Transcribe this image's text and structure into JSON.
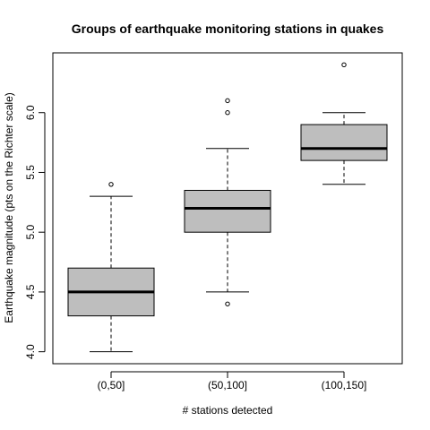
{
  "chart_data": {
    "type": "boxplot",
    "title": "Groups of earthquake monitoring stations in quakes",
    "xlabel": "# stations detected",
    "ylabel": "Earthquake magnitude (pts on the Richter scale)",
    "categories": [
      "(0,50]",
      "(50,100]",
      "(100,150]"
    ],
    "ylim": [
      3.9,
      6.5
    ],
    "yticks": [
      "4.0",
      "4.5",
      "5.0",
      "5.5",
      "6.0"
    ],
    "boxes": [
      {
        "category": "(0,50]",
        "whisker_low": 4.0,
        "q1": 4.3,
        "median": 4.5,
        "q3": 4.7,
        "whisker_high": 5.3,
        "outliers": [
          5.4
        ]
      },
      {
        "category": "(50,100]",
        "whisker_low": 4.5,
        "q1": 5.0,
        "median": 5.2,
        "q3": 5.35,
        "whisker_high": 5.7,
        "outliers": [
          4.4,
          6.0,
          6.1
        ]
      },
      {
        "category": "(100,150]",
        "whisker_low": 5.4,
        "q1": 5.6,
        "median": 5.7,
        "q3": 5.9,
        "whisker_high": 6.0,
        "outliers": [
          6.4
        ]
      }
    ],
    "box_fill": "#bebebe",
    "line_color": "#000000",
    "grid": false,
    "legend": "none"
  }
}
